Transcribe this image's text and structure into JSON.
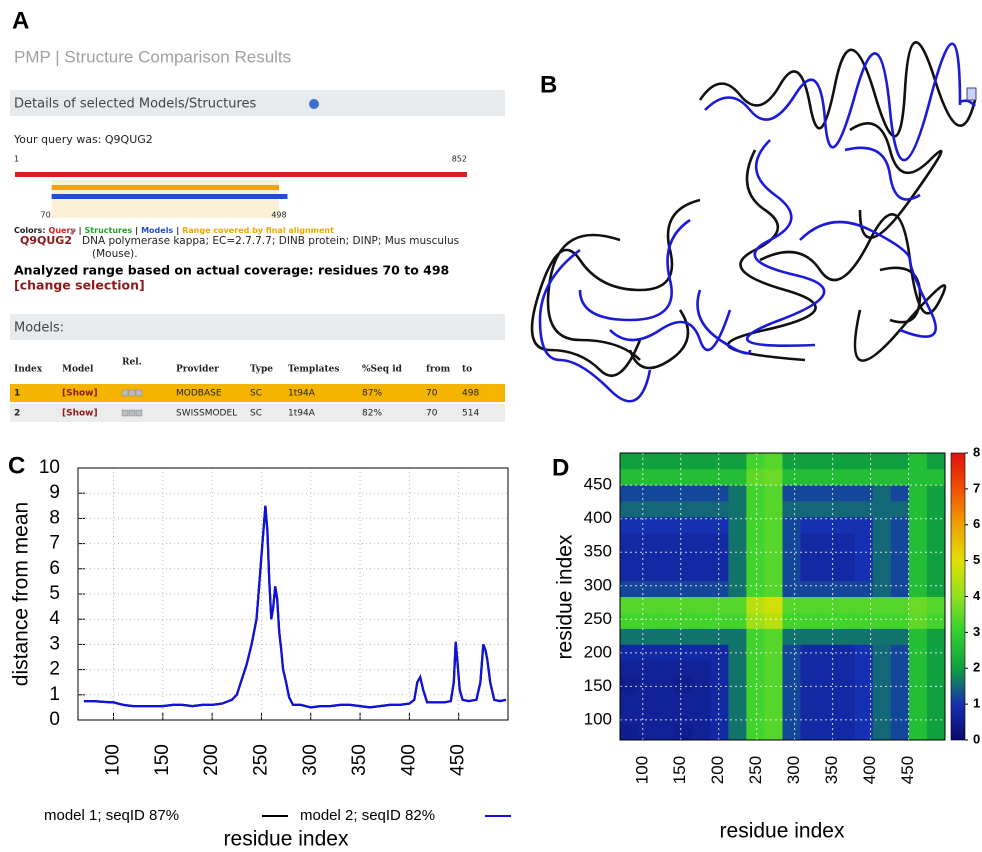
{
  "panel_labels": [
    "A",
    "B",
    "C",
    "D"
  ],
  "pmp": {
    "title": "PMP | Structure Comparison Results",
    "details_header": "Details of selected Models/Structures",
    "query_text": "Your query was: Q9QUG2",
    "query_range": [
      1,
      852
    ],
    "analyzed_range": [
      70,
      498
    ],
    "colors_legend": {
      "label": "Colors:",
      "separator": "|",
      "items": [
        {
          "name": "Query",
          "color": "#d42020"
        },
        {
          "name": "Structures",
          "color": "#28a028"
        },
        {
          "name": "Models",
          "color": "#2050c8"
        },
        {
          "name": "Range covered by final alignment",
          "color": "#f0a800"
        }
      ]
    },
    "entry_id": "Q9QUG2",
    "entry_description": [
      "DNA polymerase kappa; EC=2.7.7.7; DINB protein; DINP; Mus musculus",
      "(Mouse)."
    ],
    "analyzed_text": "Analyzed range based on actual coverage: residues 70 to 498",
    "change_selection": "[change selection]",
    "models_header": "Models:",
    "table": {
      "headers": [
        "Index",
        "Model",
        "Rel.",
        "Provider",
        "Type",
        "Templates",
        "%Seq id",
        "from",
        "to"
      ],
      "rows": [
        [
          1,
          "[Show]",
          "MODBASE",
          "SC",
          "1t94A",
          "87%",
          70,
          498
        ],
        [
          2,
          "[Show]",
          "SWISSMODEL",
          "SC",
          "1t94A",
          "82%",
          70,
          514
        ]
      ]
    }
  },
  "chart_data": [
    {
      "type": "line",
      "xlabel": "residue index",
      "ylabel": "distance from mean",
      "xlim": [
        64,
        500
      ],
      "ylim": [
        0,
        10
      ],
      "xticks": [
        100,
        150,
        200,
        250,
        300,
        350,
        400,
        450
      ],
      "yticks": [
        0,
        1,
        2,
        3,
        4,
        5,
        6,
        7,
        8,
        9,
        10
      ],
      "grid": true,
      "x": [
        70,
        80,
        90,
        100,
        110,
        120,
        130,
        140,
        150,
        160,
        170,
        180,
        190,
        200,
        210,
        220,
        225,
        230,
        235,
        240,
        245,
        248,
        251,
        254,
        256,
        258,
        260,
        262,
        264,
        266,
        268,
        270,
        272,
        275,
        278,
        282,
        290,
        300,
        310,
        320,
        330,
        340,
        350,
        360,
        370,
        380,
        390,
        400,
        405,
        408,
        411,
        414,
        418,
        425,
        435,
        442,
        445,
        447,
        449,
        451,
        454,
        460,
        468,
        472,
        475,
        477,
        479,
        482,
        486,
        492,
        498
      ],
      "series": [
        {
          "name": "model 1; seqID 87%",
          "color": "#000000",
          "values": [
            0.75,
            0.75,
            0.72,
            0.7,
            0.6,
            0.55,
            0.55,
            0.55,
            0.55,
            0.6,
            0.6,
            0.55,
            0.6,
            0.6,
            0.65,
            0.8,
            1.0,
            1.6,
            2.2,
            3.0,
            4.0,
            5.5,
            7.0,
            8.5,
            7.5,
            5.5,
            4.0,
            4.5,
            5.3,
            4.8,
            3.5,
            2.8,
            2.0,
            1.5,
            0.9,
            0.6,
            0.6,
            0.5,
            0.55,
            0.55,
            0.6,
            0.6,
            0.55,
            0.5,
            0.55,
            0.6,
            0.6,
            0.65,
            0.8,
            1.5,
            1.7,
            1.2,
            0.7,
            0.7,
            0.7,
            0.75,
            1.5,
            3.1,
            2.2,
            1.2,
            0.8,
            0.75,
            0.8,
            1.5,
            3.0,
            2.8,
            2.4,
            1.5,
            0.8,
            0.75,
            0.8
          ]
        },
        {
          "name": "model 2; seqID 82%",
          "color": "#1010e0",
          "values": [
            0.75,
            0.75,
            0.72,
            0.7,
            0.6,
            0.55,
            0.55,
            0.55,
            0.55,
            0.6,
            0.6,
            0.55,
            0.6,
            0.6,
            0.65,
            0.8,
            1.0,
            1.6,
            2.2,
            3.0,
            4.0,
            5.5,
            7.0,
            8.5,
            7.5,
            5.5,
            4.0,
            4.5,
            5.3,
            4.8,
            3.5,
            2.8,
            2.0,
            1.5,
            0.9,
            0.6,
            0.6,
            0.5,
            0.55,
            0.55,
            0.6,
            0.6,
            0.55,
            0.5,
            0.55,
            0.6,
            0.6,
            0.65,
            0.8,
            1.5,
            1.7,
            1.2,
            0.7,
            0.7,
            0.7,
            0.75,
            1.5,
            3.1,
            2.2,
            1.2,
            0.8,
            0.75,
            0.8,
            1.5,
            3.0,
            2.8,
            2.4,
            1.5,
            0.8,
            0.75,
            0.8
          ]
        }
      ]
    },
    {
      "type": "heatmap",
      "xlabel": "residue index",
      "ylabel": "residue index",
      "xlim": [
        70,
        498
      ],
      "ylim": [
        70,
        498
      ],
      "bins": [
        70,
        93.8,
        117.6,
        141.3,
        165.1,
        188.9,
        212.7,
        236.4,
        260.2,
        284,
        307.8,
        331.6,
        355.3,
        379.1,
        402.9,
        426.7,
        450.4,
        474.2,
        498
      ],
      "xticks": [
        100,
        150,
        200,
        250,
        300,
        350,
        400,
        450
      ],
      "yticks": [
        100,
        150,
        200,
        250,
        300,
        350,
        400,
        450
      ],
      "grid": true,
      "colormap": [
        "#0a0a6e",
        "#1530b0",
        "#10a040",
        "#30d030",
        "#90e020",
        "#e0e000",
        "#f0a000",
        "#f05000",
        "#e01010"
      ],
      "clim": [
        0,
        8
      ],
      "cticks": [
        0,
        1,
        2,
        3,
        4,
        5,
        6,
        7,
        8
      ],
      "z": [
        [
          0.5,
          0.6,
          0.6,
          0.5,
          0.6,
          0.8,
          1.6,
          3.2,
          3.4,
          1.2,
          0.8,
          0.8,
          0.8,
          1.0,
          1.5,
          1.2,
          2.6,
          2.0
        ],
        [
          0.6,
          0.6,
          0.6,
          0.6,
          0.6,
          0.8,
          1.6,
          3.2,
          3.4,
          1.2,
          0.8,
          0.8,
          0.8,
          1.0,
          1.5,
          1.2,
          2.6,
          2.0
        ],
        [
          0.6,
          0.6,
          0.6,
          0.6,
          0.6,
          0.8,
          1.6,
          3.2,
          3.4,
          1.2,
          0.8,
          0.8,
          0.8,
          1.0,
          1.5,
          1.2,
          2.6,
          2.0
        ],
        [
          0.5,
          0.6,
          0.6,
          0.5,
          0.6,
          0.8,
          1.6,
          3.2,
          3.4,
          1.2,
          0.8,
          0.8,
          0.8,
          1.0,
          1.5,
          1.2,
          2.6,
          2.0
        ],
        [
          0.6,
          0.6,
          0.6,
          0.6,
          0.6,
          0.8,
          1.6,
          3.2,
          3.4,
          1.2,
          0.8,
          0.8,
          0.8,
          1.0,
          1.5,
          1.2,
          2.6,
          2.0
        ],
        [
          0.8,
          0.8,
          0.8,
          0.8,
          0.8,
          0.8,
          1.6,
          3.2,
          3.4,
          1.2,
          0.8,
          0.8,
          0.8,
          1.0,
          1.5,
          1.2,
          2.6,
          2.0
        ],
        [
          1.6,
          1.6,
          1.6,
          1.6,
          1.6,
          1.6,
          1.6,
          3.2,
          3.4,
          1.6,
          1.6,
          1.6,
          1.6,
          1.6,
          1.6,
          1.6,
          2.6,
          2.0
        ],
        [
          3.2,
          3.2,
          3.2,
          3.2,
          3.2,
          3.2,
          3.2,
          4.2,
          4.5,
          3.2,
          3.2,
          3.2,
          3.2,
          3.2,
          3.2,
          3.2,
          3.5,
          3.2
        ],
        [
          3.4,
          3.4,
          3.4,
          3.4,
          3.4,
          3.4,
          3.4,
          4.5,
          4.8,
          3.4,
          3.4,
          3.4,
          3.4,
          3.4,
          3.4,
          3.4,
          3.6,
          3.4
        ],
        [
          1.2,
          1.2,
          1.2,
          1.2,
          1.2,
          1.2,
          1.6,
          3.2,
          3.4,
          1.2,
          1.2,
          1.2,
          1.2,
          1.2,
          1.5,
          1.2,
          2.6,
          2.0
        ],
        [
          0.8,
          0.8,
          0.8,
          0.8,
          0.8,
          0.8,
          1.6,
          3.2,
          3.4,
          1.2,
          0.8,
          0.8,
          0.8,
          1.0,
          1.5,
          1.2,
          2.6,
          2.0
        ],
        [
          0.8,
          0.8,
          0.8,
          0.8,
          0.8,
          0.8,
          1.6,
          3.2,
          3.4,
          1.2,
          0.8,
          0.8,
          0.8,
          1.0,
          1.5,
          1.2,
          2.6,
          2.0
        ],
        [
          0.8,
          0.8,
          0.8,
          0.8,
          0.8,
          0.8,
          1.6,
          3.2,
          3.4,
          1.2,
          0.8,
          0.8,
          0.8,
          1.0,
          1.5,
          1.2,
          2.6,
          2.0
        ],
        [
          1.0,
          1.0,
          1.0,
          1.0,
          1.0,
          1.0,
          1.6,
          3.2,
          3.4,
          1.2,
          1.0,
          1.0,
          1.0,
          1.0,
          1.5,
          1.2,
          2.6,
          2.0
        ],
        [
          1.5,
          1.5,
          1.5,
          1.5,
          1.5,
          1.5,
          1.6,
          3.2,
          3.4,
          1.5,
          1.5,
          1.5,
          1.5,
          1.5,
          1.5,
          1.5,
          2.6,
          2.0
        ],
        [
          1.2,
          1.2,
          1.2,
          1.2,
          1.2,
          1.2,
          1.6,
          3.2,
          3.4,
          1.2,
          1.2,
          1.2,
          1.2,
          1.2,
          1.5,
          1.2,
          2.6,
          2.0
        ],
        [
          2.6,
          2.6,
          2.6,
          2.6,
          2.6,
          2.6,
          2.6,
          3.5,
          3.6,
          2.6,
          2.6,
          2.6,
          2.6,
          2.6,
          2.6,
          2.6,
          2.6,
          2.6
        ],
        [
          2.0,
          2.0,
          2.0,
          2.0,
          2.0,
          2.0,
          2.0,
          3.2,
          3.4,
          2.0,
          2.0,
          2.0,
          2.0,
          2.0,
          2.0,
          2.0,
          2.6,
          2.0
        ]
      ]
    }
  ]
}
